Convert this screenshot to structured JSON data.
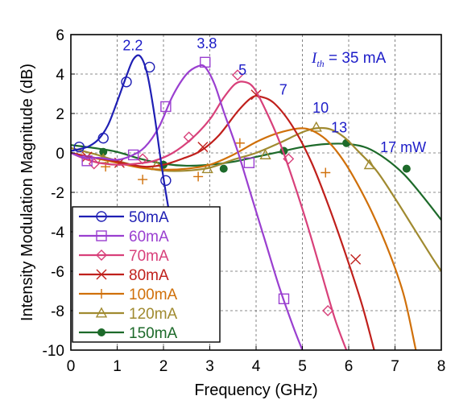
{
  "chart_data": {
    "type": "line",
    "title": "",
    "xlabel": "Frequency (GHz)",
    "ylabel": "Intensity Modulation Magnitude (dB)",
    "xlim": [
      0,
      8
    ],
    "ylim": [
      -10,
      6
    ],
    "xticks": [
      0,
      1,
      2,
      3,
      4,
      5,
      6,
      7,
      8
    ],
    "yticks": [
      -10,
      -8,
      -6,
      -4,
      -2,
      0,
      2,
      4,
      6
    ],
    "grid": true,
    "legend": "bottom-left",
    "annotation_color": "#1c1cc8",
    "threshold_label": {
      "symbol": "I",
      "subscript": "th",
      "text": " = 35 mA"
    },
    "peak_labels": [
      {
        "text": "2.2",
        "x": 1.12,
        "y": 5.2
      },
      {
        "text": "3.8",
        "x": 2.72,
        "y": 5.3
      },
      {
        "text": "5",
        "x": 3.62,
        "y": 3.95
      },
      {
        "text": "7",
        "x": 4.5,
        "y": 2.95
      },
      {
        "text": "10",
        "x": 5.22,
        "y": 2.05
      },
      {
        "text": "13",
        "x": 5.62,
        "y": 1.05
      },
      {
        "text": "17 mW",
        "x": 6.68,
        "y": 0.05
      }
    ],
    "series": [
      {
        "name": "50mA",
        "color": "#1f1fb4",
        "marker": "circle-open",
        "x": [
          0,
          0.2,
          0.4,
          0.6,
          0.8,
          1.0,
          1.2,
          1.35,
          1.5,
          1.65,
          1.8,
          1.95,
          2.1,
          2.25
        ],
        "y": [
          0.1,
          0.2,
          0.35,
          0.7,
          1.4,
          2.6,
          3.9,
          4.75,
          4.9,
          4.0,
          2.0,
          -0.5,
          -2.7,
          -4.5
        ],
        "markers_x": [
          0.18,
          0.7,
          1.2,
          1.7,
          2.05
        ],
        "markers_y": [
          0.3,
          0.75,
          3.6,
          4.35,
          -1.4
        ]
      },
      {
        "name": "60mA",
        "color": "#9a3fd0",
        "marker": "square-open",
        "x": [
          0,
          0.3,
          0.6,
          1.0,
          1.3,
          1.6,
          1.9,
          2.2,
          2.5,
          2.75,
          2.9,
          3.1,
          3.3,
          3.6,
          3.9,
          4.2,
          4.5,
          4.8,
          5.0
        ],
        "y": [
          0,
          -0.25,
          -0.25,
          -0.35,
          -0.15,
          0.3,
          1.3,
          2.9,
          4.0,
          4.4,
          4.35,
          3.5,
          2.1,
          0.1,
          -2.2,
          -4.5,
          -6.8,
          -8.8,
          -10.0
        ],
        "markers_x": [
          0.35,
          1.35,
          2.05,
          2.9,
          3.85,
          4.6
        ],
        "markers_y": [
          -0.4,
          -0.1,
          2.35,
          4.6,
          -0.5,
          -7.4
        ]
      },
      {
        "name": "70mA",
        "color": "#d8407a",
        "marker": "diamond-open",
        "x": [
          0,
          0.3,
          0.6,
          1.0,
          1.4,
          1.8,
          2.2,
          2.6,
          3.0,
          3.3,
          3.55,
          3.75,
          3.95,
          4.2,
          4.5,
          4.8,
          5.1,
          5.4,
          5.7,
          5.95
        ],
        "y": [
          0,
          -0.3,
          -0.5,
          -0.6,
          -0.55,
          -0.4,
          0.0,
          0.7,
          1.7,
          2.8,
          3.5,
          3.6,
          3.3,
          2.2,
          0.6,
          -1.4,
          -3.6,
          -6.0,
          -8.4,
          -10.0
        ],
        "markers_x": [
          0.5,
          1.55,
          2.55,
          3.6,
          4.7,
          5.55
        ],
        "markers_y": [
          -0.55,
          -0.3,
          0.8,
          3.95,
          -0.3,
          -8.0
        ]
      },
      {
        "name": "80mA",
        "color": "#c0201c",
        "marker": "x",
        "x": [
          0,
          0.4,
          0.8,
          1.2,
          1.6,
          2.0,
          2.4,
          2.8,
          3.2,
          3.6,
          3.9,
          4.1,
          4.4,
          4.8,
          5.2,
          5.6,
          6.0,
          6.3,
          6.55
        ],
        "y": [
          0,
          -0.2,
          -0.35,
          -0.55,
          -0.7,
          -0.6,
          -0.3,
          0.1,
          0.9,
          2.1,
          2.8,
          2.85,
          2.5,
          1.3,
          -0.5,
          -2.9,
          -5.6,
          -7.8,
          -10.0
        ],
        "markers_x": [
          0.35,
          1.05,
          2.85,
          4.0,
          6.15
        ],
        "markers_y": [
          -0.2,
          -0.5,
          0.3,
          2.95,
          -5.4
        ]
      },
      {
        "name": "100mA",
        "color": "#d0700a",
        "marker": "plus",
        "x": [
          0,
          0.5,
          1.0,
          1.5,
          2.0,
          2.5,
          3.0,
          3.5,
          4.0,
          4.4,
          4.8,
          5.0,
          5.2,
          5.5,
          5.8,
          6.1,
          6.5,
          6.9,
          7.2,
          7.45
        ],
        "y": [
          0,
          -0.25,
          -0.5,
          -0.75,
          -0.85,
          -0.8,
          -0.6,
          -0.1,
          0.55,
          0.95,
          1.2,
          1.25,
          1.15,
          0.7,
          -0.1,
          -1.2,
          -3.0,
          -5.2,
          -7.3,
          -10.0
        ],
        "markers_x": [
          0.75,
          1.55,
          2.75,
          3.65,
          5.5
        ],
        "markers_y": [
          -0.7,
          -1.35,
          -1.2,
          0.5,
          -1.0
        ]
      },
      {
        "name": "120mA",
        "color": "#a08a30",
        "marker": "triangle-open",
        "x": [
          0,
          0.5,
          1.0,
          1.5,
          2.0,
          2.5,
          3.0,
          3.5,
          4.0,
          4.5,
          5.0,
          5.3,
          5.6,
          5.9,
          6.2,
          6.6,
          7.0,
          7.4,
          7.8,
          8.0
        ],
        "y": [
          0.25,
          -0.05,
          -0.4,
          -0.7,
          -0.9,
          -0.9,
          -0.75,
          -0.35,
          0.0,
          0.5,
          1.05,
          1.25,
          1.2,
          0.8,
          0.1,
          -0.9,
          -2.3,
          -3.8,
          -5.3,
          -6.0
        ],
        "markers_x": [
          0.7,
          1.85,
          2.95,
          4.2,
          5.3,
          6.45
        ],
        "markers_y": [
          -0.3,
          -0.65,
          -0.8,
          -0.1,
          1.3,
          -0.6
        ]
      },
      {
        "name": "150mA",
        "color": "#1d6a2a",
        "marker": "circle-filled",
        "x": [
          0,
          0.5,
          1.0,
          1.5,
          2.0,
          2.5,
          3.0,
          3.5,
          4.0,
          4.5,
          5.0,
          5.5,
          6.0,
          6.4,
          6.8,
          7.2,
          7.6,
          8.0
        ],
        "y": [
          0.4,
          0.25,
          0.05,
          -0.3,
          -0.55,
          -0.65,
          -0.6,
          -0.45,
          -0.2,
          0.05,
          0.3,
          0.45,
          0.45,
          0.25,
          -0.3,
          -1.1,
          -2.2,
          -3.4
        ],
        "markers_x": [
          0.7,
          2.0,
          3.3,
          4.6,
          5.95,
          7.25
        ],
        "markers_y": [
          0.05,
          -0.6,
          -0.8,
          0.1,
          0.5,
          -0.8
        ]
      }
    ]
  }
}
